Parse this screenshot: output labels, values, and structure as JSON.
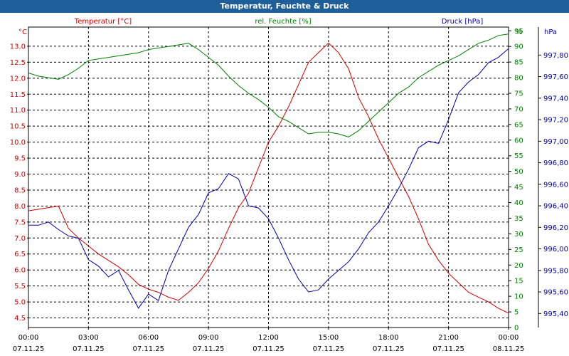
{
  "window": {
    "title": "Temperatur, Feuchte & Druck"
  },
  "colors": {
    "temperature": "#cc0000",
    "humidity": "#008000",
    "pressure": "#0000aa",
    "grid": "#000000",
    "titlebar": "#1f5f99"
  },
  "chart_data": {
    "type": "line",
    "title": "Temperatur, Feuchte & Druck",
    "grid": true,
    "x_ticks": [
      {
        "time": "00:00",
        "date": "07.11.25",
        "hour": 0
      },
      {
        "time": "03:00",
        "date": "07.11.25",
        "hour": 3
      },
      {
        "time": "06:00",
        "date": "07.11.25",
        "hour": 6
      },
      {
        "time": "09:00",
        "date": "07.11.25",
        "hour": 9
      },
      {
        "time": "12:00",
        "date": "07.11.25",
        "hour": 12
      },
      {
        "time": "15:00",
        "date": "07.11.25",
        "hour": 15
      },
      {
        "time": "18:00",
        "date": "07.11.25",
        "hour": 18
      },
      {
        "time": "21:00",
        "date": "07.11.25",
        "hour": 21
      },
      {
        "time": "00:00",
        "date": "08.11.25",
        "hour": 24
      }
    ],
    "xlim": [
      0,
      24
    ],
    "axes": {
      "left": {
        "unit": "°C",
        "ylim": [
          4.2,
          13.6
        ],
        "ticks": [
          "4.5",
          "5.0",
          "5.5",
          "6.0",
          "6.5",
          "7.0",
          "7.5",
          "8.0",
          "8.5",
          "9.0",
          "9.5",
          "10.0",
          "10.5",
          "11.0",
          "11.5",
          "12.0",
          "12.5",
          "13.0"
        ]
      },
      "right1": {
        "unit": "%",
        "ylim": [
          0,
          96.2
        ],
        "ticks": [
          "0",
          "5",
          "10",
          "15",
          "20",
          "25",
          "30",
          "35",
          "40",
          "45",
          "50",
          "55",
          "60",
          "65",
          "70",
          "75",
          "80",
          "85",
          "90",
          "95"
        ]
      },
      "right2": {
        "unit": "hPa",
        "ylim": [
          995.27,
          998.06
        ],
        "ticks": [
          "995,40",
          "995,60",
          "995,80",
          "996,00",
          "996,20",
          "996,40",
          "996,60",
          "996,80",
          "997,00",
          "997,20",
          "997,40",
          "997,60",
          "997,80"
        ]
      }
    },
    "series": [
      {
        "name": "Temperatur [°C]",
        "axis": "left",
        "x": [
          0,
          0.5,
          1,
          1.5,
          2,
          2.5,
          3,
          3.5,
          4,
          4.5,
          5,
          5.5,
          6,
          6.5,
          7,
          7.5,
          8,
          8.5,
          9,
          9.5,
          10,
          10.5,
          11,
          11.5,
          12,
          12.5,
          13,
          13.5,
          14,
          14.5,
          15,
          15.5,
          16,
          16.5,
          17,
          17.5,
          18,
          18.5,
          19,
          19.5,
          20,
          20.5,
          21,
          21.5,
          22,
          22.5,
          23,
          23.5,
          24
        ],
        "values": [
          7.85,
          7.9,
          7.95,
          8.0,
          7.3,
          7.0,
          6.75,
          6.5,
          6.3,
          6.1,
          5.85,
          5.55,
          5.4,
          5.3,
          5.15,
          5.05,
          5.3,
          5.6,
          6.05,
          6.6,
          7.3,
          7.95,
          8.4,
          9.2,
          10.0,
          10.5,
          11.1,
          11.8,
          12.5,
          12.8,
          13.1,
          12.8,
          12.3,
          11.4,
          10.8,
          10.1,
          9.5,
          8.9,
          8.3,
          7.6,
          6.8,
          6.3,
          5.9,
          5.6,
          5.3,
          5.15,
          5.0,
          4.8,
          4.65
        ]
      },
      {
        "name": "rel. Feuchte [%]",
        "axis": "right1",
        "x": [
          0,
          0.5,
          1,
          1.5,
          2,
          2.5,
          3,
          3.5,
          4,
          4.5,
          5,
          5.5,
          6,
          6.5,
          7,
          7.5,
          8,
          8.5,
          9,
          9.5,
          10,
          10.5,
          11,
          11.5,
          12,
          12.5,
          13,
          13.5,
          14,
          14.5,
          15,
          15.5,
          16,
          16.5,
          17,
          17.5,
          18,
          18.5,
          19,
          19.5,
          20,
          20.5,
          21,
          21.5,
          22,
          22.5,
          23,
          23.5,
          24
        ],
        "values": [
          81.5,
          80.5,
          80,
          79.5,
          81,
          83,
          85.5,
          86,
          86.5,
          87,
          87.5,
          88,
          89,
          89.5,
          90,
          90.5,
          91,
          89,
          86.5,
          84,
          80.5,
          77.5,
          75,
          73,
          70.5,
          67.5,
          66,
          64,
          62,
          62.5,
          62.5,
          62,
          61,
          63,
          66,
          69,
          72,
          75,
          77,
          80,
          82,
          84,
          85.5,
          87,
          89,
          91,
          92,
          93.5,
          94
        ]
      },
      {
        "name": "Druck [hPa]",
        "axis": "right2",
        "x": [
          0,
          0.5,
          1,
          1.5,
          2,
          2.5,
          3,
          3.5,
          4,
          4.5,
          5,
          5.5,
          6,
          6.5,
          7,
          7.5,
          8,
          8.5,
          9,
          9.5,
          10,
          10.5,
          11,
          11.5,
          12,
          12.5,
          13,
          13.5,
          14,
          14.5,
          15,
          15.5,
          16,
          16.5,
          17,
          17.5,
          18,
          18.5,
          19,
          19.5,
          20,
          20.5,
          21,
          21.5,
          22,
          22.5,
          23,
          23.5,
          24
        ],
        "values": [
          996.22,
          996.22,
          996.25,
          996.18,
          996.12,
          996.1,
          995.9,
          995.84,
          995.74,
          995.8,
          995.62,
          995.45,
          995.58,
          995.52,
          995.8,
          996.0,
          996.2,
          996.32,
          996.52,
          996.56,
          996.7,
          996.65,
          996.4,
          996.38,
          996.28,
          996.1,
          995.9,
          995.72,
          995.6,
          995.62,
          995.72,
          995.8,
          995.88,
          996.0,
          996.15,
          996.25,
          996.4,
          996.56,
          996.74,
          996.94,
          997.0,
          996.98,
          997.2,
          997.45,
          997.55,
          997.62,
          997.73,
          997.78,
          997.86
        ]
      }
    ],
    "legend": [
      {
        "label": "Temperatur [°C]",
        "series": 0,
        "position": "top-left"
      },
      {
        "label": "rel. Feuchte [%]",
        "series": 1,
        "position": "top-center"
      },
      {
        "label": "Druck [hPa]",
        "series": 2,
        "position": "top-right"
      }
    ]
  }
}
